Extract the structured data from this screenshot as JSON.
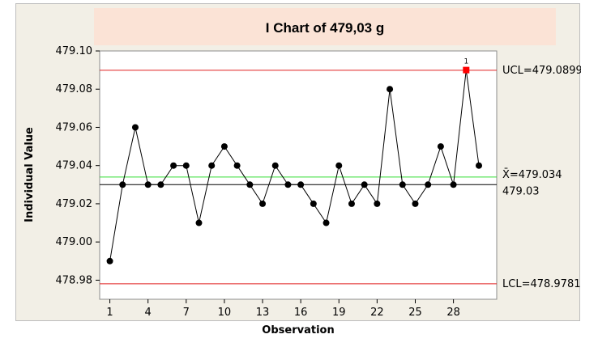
{
  "chart_data": {
    "type": "line",
    "title": "I Chart of 479,03 g",
    "xlabel": "Observation",
    "ylabel": "Individual Value",
    "xlim": [
      0.2,
      31.4
    ],
    "ylim": [
      478.97,
      479.1
    ],
    "x_ticks": [
      1,
      4,
      7,
      10,
      13,
      16,
      19,
      22,
      25,
      28
    ],
    "x_tick_labels": [
      "1",
      "4",
      "7",
      "10",
      "13",
      "16",
      "19",
      "22",
      "25",
      "28"
    ],
    "y_ticks": [
      478.98,
      479.0,
      479.02,
      479.04,
      479.06,
      479.08,
      479.1
    ],
    "y_tick_labels": [
      "478.98",
      "479.00",
      "479.02",
      "479.04",
      "479.06",
      "479.08",
      "479.10"
    ],
    "grid": false,
    "series": [
      {
        "x": [
          1,
          2,
          3,
          4,
          5,
          6,
          7,
          8,
          9,
          10,
          11,
          12,
          13,
          14,
          15,
          16,
          17,
          18,
          19,
          20,
          21,
          22,
          23,
          24,
          25,
          26,
          27,
          28,
          29,
          30
        ],
        "values": [
          478.99,
          479.03,
          479.06,
          479.03,
          479.03,
          479.04,
          479.04,
          479.01,
          479.04,
          479.05,
          479.04,
          479.03,
          479.02,
          479.04,
          479.03,
          479.03,
          479.02,
          479.01,
          479.04,
          479.02,
          479.03,
          479.02,
          479.08,
          479.03,
          479.02,
          479.03,
          479.05,
          479.03,
          479.09,
          479.04
        ]
      }
    ],
    "flagged_points": [
      {
        "x": 29,
        "value": 479.09,
        "label": "1"
      }
    ],
    "reference_lines": [
      {
        "value": 479.0899,
        "label": "UCL=479.0899",
        "color": "#e02020"
      },
      {
        "value": 479.034,
        "label": "X̄=479.034",
        "color": "#33dd33"
      },
      {
        "value": 479.03,
        "label": "479.03",
        "color": "#000000"
      },
      {
        "value": 478.9781,
        "label": "LCL=478.9781",
        "color": "#e02020"
      }
    ],
    "colors": {
      "background": "#f2efe6",
      "plot_area": "#ffffff",
      "title_band": "#fbe3d6",
      "series": "#000000",
      "flagged_point": "#ff0000"
    }
  }
}
